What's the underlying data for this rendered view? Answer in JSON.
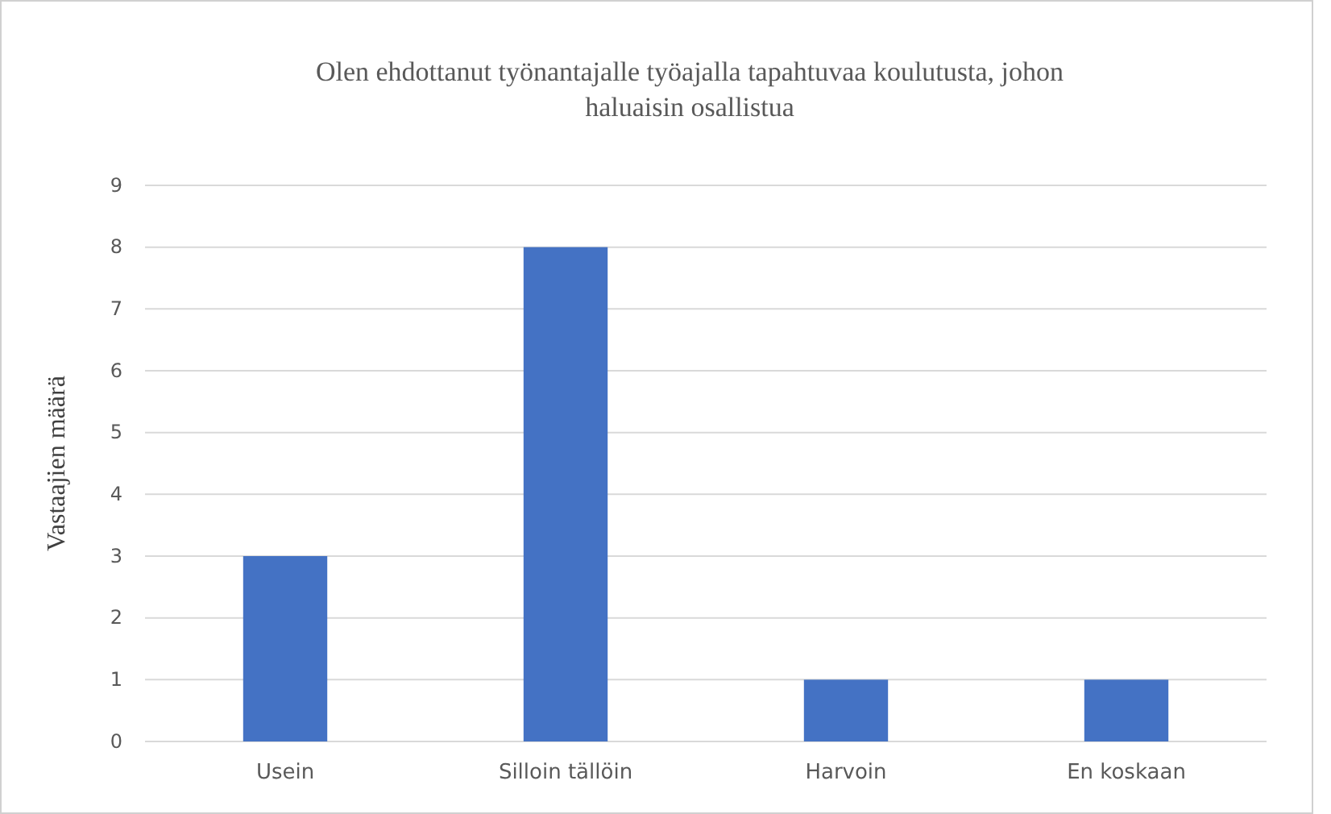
{
  "chart_data": {
    "type": "bar",
    "title": "Olen ehdottanut työnantajalle työajalla tapahtuvaa koulutusta, johon haluaisin osallistua",
    "ylabel": "Vastaajien määrä",
    "categories": [
      "Usein",
      "Silloin tällöin",
      "Harvoin",
      "En koskaan"
    ],
    "values": [
      3,
      8,
      1,
      1
    ],
    "color": "#4472c4",
    "ylim": [
      0,
      9
    ],
    "yticks": [
      0,
      1,
      2,
      3,
      4,
      5,
      6,
      7,
      8,
      9
    ],
    "grid": "y"
  }
}
